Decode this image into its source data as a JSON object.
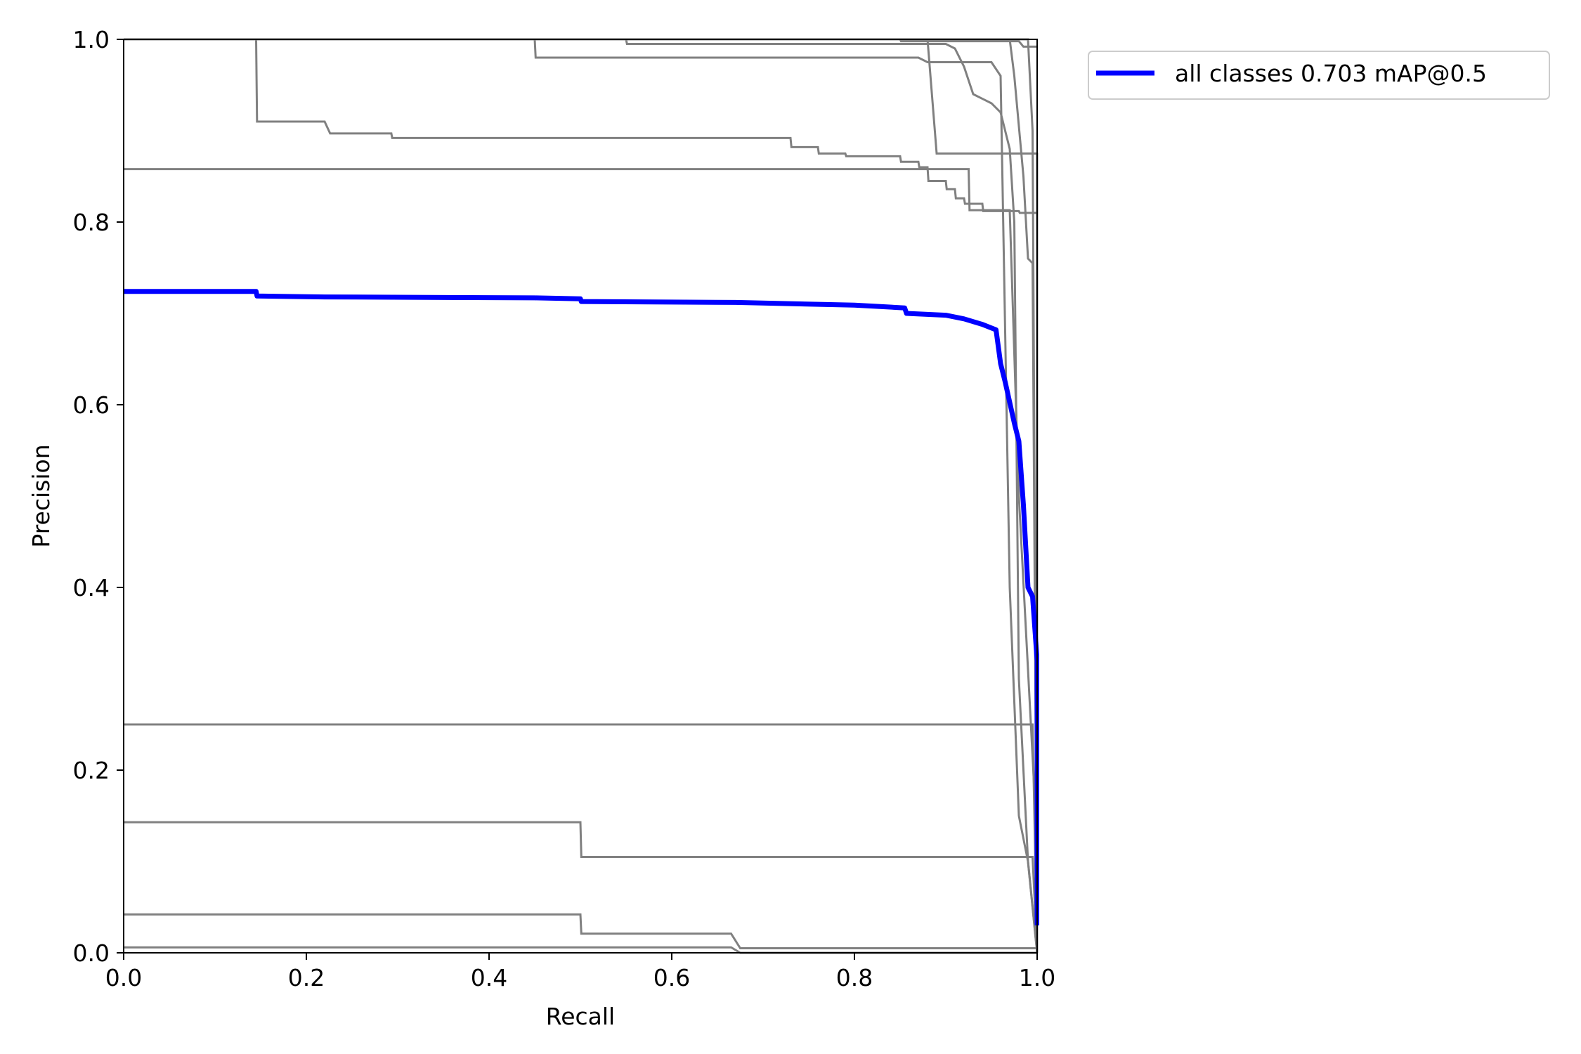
{
  "chart_data": {
    "type": "line",
    "title": "",
    "xlabel": "Recall",
    "ylabel": "Precision",
    "xlim": [
      0,
      1
    ],
    "ylim": [
      0,
      1
    ],
    "xticks": [
      "0.0",
      "0.2",
      "0.4",
      "0.6",
      "0.8",
      "1.0"
    ],
    "yticks": [
      "0.0",
      "0.2",
      "0.4",
      "0.6",
      "0.8",
      "1.0"
    ],
    "grid": false,
    "legend_position": "outside-top-right",
    "colors": {
      "main": "#0000ff",
      "class_curves": "#808080"
    },
    "series": [
      {
        "name": "all classes 0.703 mAP@0.5",
        "role": "main",
        "x": [
          0,
          0.145,
          0.146,
          0.22,
          0.45,
          0.5,
          0.501,
          0.67,
          0.8,
          0.855,
          0.857,
          0.9,
          0.92,
          0.94,
          0.955,
          0.96,
          0.965,
          0.975,
          0.98,
          0.985,
          0.99,
          0.995,
          1.0,
          1.0
        ],
        "y": [
          0.724,
          0.724,
          0.719,
          0.718,
          0.717,
          0.716,
          0.713,
          0.712,
          0.709,
          0.706,
          0.7,
          0.698,
          0.694,
          0.688,
          0.682,
          0.645,
          0.625,
          0.58,
          0.56,
          0.49,
          0.4,
          0.39,
          0.32,
          0.03
        ]
      },
      {
        "x": [
          0,
          0.145,
          0.146,
          0.22,
          0.226,
          0.293,
          0.294,
          0.73,
          0.731,
          0.76,
          0.761,
          0.79,
          0.791,
          0.85,
          0.851,
          0.87,
          0.871,
          0.88,
          0.881,
          0.9,
          0.901,
          0.91,
          0.911,
          0.92,
          0.921,
          0.94,
          0.941,
          0.98,
          0.981,
          1.0
        ],
        "y": [
          1.0,
          1.0,
          0.91,
          0.91,
          0.897,
          0.897,
          0.892,
          0.892,
          0.882,
          0.882,
          0.875,
          0.875,
          0.872,
          0.872,
          0.866,
          0.866,
          0.86,
          0.86,
          0.845,
          0.845,
          0.836,
          0.836,
          0.826,
          0.826,
          0.82,
          0.82,
          0.812,
          0.812,
          0.81,
          0.81
        ]
      },
      {
        "x": [
          0,
          0.925,
          0.926,
          0.97,
          0.98,
          1.0,
          1.0
        ],
        "y": [
          0.858,
          0.858,
          0.813,
          0.813,
          0.5,
          0.12,
          0.0
        ]
      },
      {
        "x": [
          0,
          0.45,
          0.451,
          0.87,
          0.88,
          0.95,
          0.96,
          0.97,
          0.98,
          0.99,
          1.0
        ],
        "y": [
          1.0,
          1.0,
          0.98,
          0.98,
          0.975,
          0.975,
          0.96,
          0.4,
          0.15,
          0.1,
          0.0
        ]
      },
      {
        "x": [
          0,
          0.55,
          0.551,
          0.9,
          0.91,
          0.92,
          0.93,
          0.95,
          0.96,
          0.97,
          0.975,
          0.98,
          0.99,
          1.0
        ],
        "y": [
          1.0,
          1.0,
          0.995,
          0.995,
          0.99,
          0.97,
          0.94,
          0.93,
          0.92,
          0.88,
          0.8,
          0.3,
          0.1,
          0.0
        ]
      },
      {
        "x": [
          0,
          0.85,
          0.851,
          0.98,
          0.985,
          1.0
        ],
        "y": [
          1.0,
          1.0,
          0.998,
          0.998,
          0.992,
          0.992
        ]
      },
      {
        "x": [
          0,
          0.88,
          0.89,
          1.0,
          1.0
        ],
        "y": [
          1.0,
          1.0,
          0.875,
          0.875,
          0.1
        ]
      },
      {
        "x": [
          0,
          0.97,
          0.975,
          0.985,
          0.99,
          0.995,
          1.0
        ],
        "y": [
          1.0,
          1.0,
          0.96,
          0.85,
          0.76,
          0.755,
          0.0
        ]
      },
      {
        "x": [
          0,
          0.99,
          0.995,
          1.0
        ],
        "y": [
          1.0,
          1.0,
          0.9,
          0.0
        ]
      },
      {
        "x": [
          0,
          0.995,
          1.0
        ],
        "y": [
          0.25,
          0.25,
          0.0
        ]
      },
      {
        "x": [
          0,
          0.5,
          0.501,
          0.995,
          1.0
        ],
        "y": [
          0.143,
          0.143,
          0.105,
          0.105,
          0.0
        ]
      },
      {
        "x": [
          0,
          0.5,
          0.501,
          0.665,
          0.675,
          1.0
        ],
        "y": [
          0.042,
          0.042,
          0.021,
          0.021,
          0.005,
          0.005
        ]
      },
      {
        "x": [
          0,
          0.665,
          0.675,
          0.995,
          1.0
        ],
        "y": [
          0.006,
          0.006,
          0.0,
          0.0,
          0.0
        ]
      }
    ]
  }
}
